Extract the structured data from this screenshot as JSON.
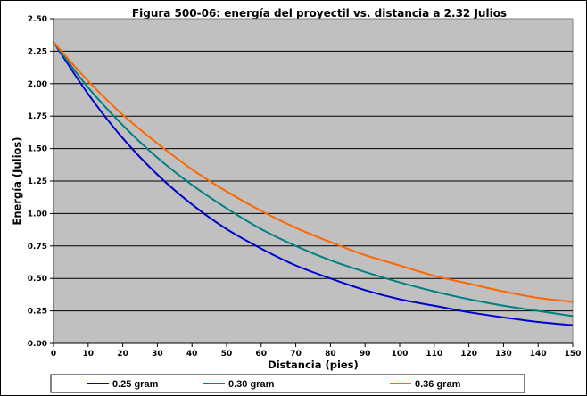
{
  "chart_data": {
    "type": "line",
    "title": "Figura 500-06: energía del proyectil vs. distancia a 2.32 Julios",
    "xlabel": "Distancia (pies)",
    "ylabel": "Energía (Julios)",
    "xlim": [
      0,
      150
    ],
    "ylim": [
      0,
      2.5
    ],
    "x_ticks": [
      "0",
      "10",
      "20",
      "30",
      "40",
      "50",
      "60",
      "70",
      "80",
      "90",
      "100",
      "110",
      "120",
      "130",
      "140",
      "150"
    ],
    "y_ticks": [
      "0.00",
      "0.25",
      "0.50",
      "0.75",
      "1.00",
      "1.25",
      "1.50",
      "1.75",
      "2.00",
      "2.25",
      "2.50"
    ],
    "grid": true,
    "legend_position": "bottom",
    "plot_background": "#c0c0c0",
    "x": [
      0,
      10,
      20,
      30,
      40,
      50,
      60,
      70,
      80,
      90,
      100,
      110,
      120,
      130,
      140,
      150
    ],
    "series": [
      {
        "name": "0.25 gram",
        "color": "#0000cc",
        "values": [
          2.32,
          1.92,
          1.58,
          1.3,
          1.07,
          0.88,
          0.73,
          0.6,
          0.5,
          0.41,
          0.34,
          0.29,
          0.24,
          0.2,
          0.165,
          0.14
        ]
      },
      {
        "name": "0.30 gram",
        "color": "#008080",
        "values": [
          2.32,
          1.97,
          1.68,
          1.43,
          1.22,
          1.04,
          0.88,
          0.75,
          0.64,
          0.55,
          0.47,
          0.4,
          0.34,
          0.29,
          0.25,
          0.21
        ]
      },
      {
        "name": "0.36 gram",
        "color": "#ff6600",
        "values": [
          2.32,
          2.02,
          1.76,
          1.54,
          1.34,
          1.17,
          1.02,
          0.89,
          0.78,
          0.68,
          0.6,
          0.52,
          0.46,
          0.4,
          0.35,
          0.32
        ]
      }
    ]
  }
}
